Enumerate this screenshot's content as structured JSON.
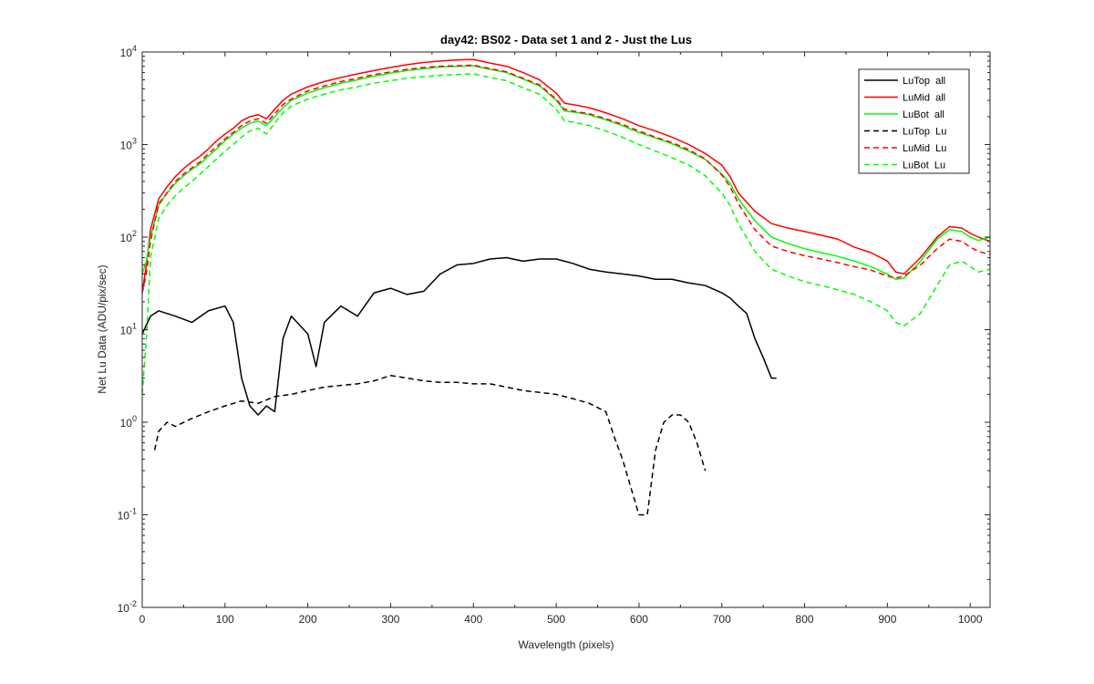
{
  "chart_data": {
    "type": "line",
    "title": "day42: BS02 - Data set 1 and 2 - Just the Lus",
    "xlabel": "Wavelength (pixels)",
    "ylabel": "Net Lu Data (ADU/pix/sec)",
    "xlim": [
      0,
      1024
    ],
    "ylim": [
      0.01,
      10000
    ],
    "yscale": "log",
    "grid": false,
    "legend_position": "top-right",
    "x_ticks": [
      "0",
      "100",
      "200",
      "300",
      "400",
      "500",
      "600",
      "700",
      "800",
      "900",
      "1000"
    ],
    "y_ticks": [
      {
        "base": "10",
        "exp": "-2"
      },
      {
        "base": "10",
        "exp": "-1"
      },
      {
        "base": "10",
        "exp": "0"
      },
      {
        "base": "10",
        "exp": "1"
      },
      {
        "base": "10",
        "exp": "2"
      },
      {
        "base": "10",
        "exp": "3"
      },
      {
        "base": "10",
        "exp": "4"
      }
    ],
    "series": [
      {
        "name": "LuTop  all",
        "color": "#000000",
        "style": "solid",
        "x": [
          0,
          10,
          20,
          40,
          60,
          80,
          100,
          110,
          120,
          130,
          140,
          150,
          160,
          170,
          180,
          200,
          210,
          220,
          240,
          260,
          280,
          300,
          320,
          340,
          360,
          380,
          400,
          420,
          440,
          460,
          480,
          500,
          520,
          540,
          560,
          580,
          600,
          620,
          640,
          660,
          680,
          700,
          710,
          720,
          730,
          740,
          750,
          760,
          766
        ],
        "y": [
          9,
          14,
          16,
          14,
          12,
          16,
          18,
          12,
          3,
          1.5,
          1.2,
          1.5,
          1.3,
          8,
          14,
          9,
          4,
          12,
          18,
          14,
          25,
          28,
          24,
          26,
          40,
          50,
          52,
          58,
          60,
          55,
          58,
          58,
          52,
          45,
          42,
          40,
          38,
          35,
          35,
          32,
          30,
          25,
          22,
          18,
          15,
          8,
          5,
          3,
          3
        ]
      },
      {
        "name": "LuMid  all",
        "color": "#ff0000",
        "style": "solid",
        "x": [
          0,
          5,
          10,
          20,
          30,
          40,
          50,
          60,
          70,
          80,
          90,
          100,
          110,
          120,
          130,
          140,
          150,
          160,
          170,
          180,
          200,
          220,
          240,
          260,
          280,
          300,
          320,
          340,
          360,
          380,
          400,
          420,
          440,
          460,
          480,
          500,
          510,
          520,
          540,
          560,
          580,
          600,
          620,
          640,
          660,
          680,
          700,
          710,
          720,
          740,
          760,
          780,
          800,
          820,
          840,
          860,
          880,
          900,
          910,
          920,
          940,
          960,
          975,
          990,
          1000,
          1010,
          1024
        ],
        "y": [
          25,
          50,
          120,
          260,
          350,
          450,
          550,
          650,
          750,
          900,
          1100,
          1300,
          1500,
          1800,
          2000,
          2100,
          1900,
          2400,
          3000,
          3500,
          4200,
          4800,
          5300,
          5800,
          6300,
          6800,
          7300,
          7700,
          8000,
          8200,
          8300,
          7600,
          7000,
          6000,
          5000,
          3600,
          2800,
          2700,
          2500,
          2200,
          1900,
          1600,
          1400,
          1200,
          1000,
          800,
          600,
          450,
          300,
          190,
          140,
          125,
          115,
          105,
          95,
          78,
          68,
          55,
          42,
          40,
          60,
          100,
          130,
          125,
          110,
          100,
          90
        ]
      },
      {
        "name": "LuBot  all",
        "color": "#00ff00",
        "style": "solid",
        "x": [
          0,
          5,
          10,
          20,
          30,
          40,
          50,
          60,
          70,
          80,
          90,
          100,
          110,
          120,
          130,
          140,
          150,
          160,
          170,
          180,
          200,
          220,
          240,
          260,
          280,
          300,
          320,
          340,
          360,
          380,
          400,
          420,
          440,
          460,
          480,
          500,
          510,
          520,
          540,
          560,
          580,
          600,
          620,
          640,
          660,
          680,
          700,
          710,
          720,
          740,
          760,
          780,
          800,
          820,
          840,
          860,
          880,
          900,
          910,
          920,
          940,
          960,
          975,
          990,
          1000,
          1010,
          1024
        ],
        "y": [
          40,
          55,
          100,
          220,
          300,
          380,
          460,
          540,
          620,
          750,
          900,
          1100,
          1300,
          1500,
          1700,
          1800,
          1600,
          2000,
          2500,
          3000,
          3600,
          4100,
          4600,
          5000,
          5500,
          5900,
          6300,
          6600,
          6900,
          7000,
          7100,
          6500,
          6000,
          5100,
          4300,
          3000,
          2300,
          2250,
          2100,
          1850,
          1600,
          1350,
          1180,
          1020,
          850,
          690,
          480,
          380,
          260,
          150,
          100,
          85,
          75,
          68,
          62,
          55,
          48,
          40,
          35,
          36,
          55,
          95,
          120,
          115,
          100,
          92,
          100
        ]
      },
      {
        "name": "LuTop  Lu",
        "color": "#000000",
        "style": "dashed",
        "x": [
          15,
          20,
          30,
          40,
          60,
          80,
          100,
          120,
          140,
          160,
          180,
          200,
          220,
          240,
          260,
          280,
          300,
          320,
          340,
          360,
          380,
          400,
          420,
          440,
          460,
          480,
          500,
          520,
          540,
          560,
          570,
          580,
          590,
          600,
          610,
          620,
          630,
          640,
          650,
          660,
          670,
          680
        ],
        "y": [
          0.5,
          0.8,
          1.0,
          0.9,
          1.1,
          1.3,
          1.5,
          1.7,
          1.6,
          1.9,
          2.0,
          2.2,
          2.4,
          2.5,
          2.6,
          2.8,
          3.2,
          3.0,
          2.8,
          2.7,
          2.7,
          2.6,
          2.6,
          2.4,
          2.2,
          2.1,
          2.0,
          1.8,
          1.6,
          1.3,
          0.7,
          0.4,
          0.2,
          0.1,
          0.1,
          0.5,
          1.0,
          1.2,
          1.2,
          1.0,
          0.6,
          0.3
        ]
      },
      {
        "name": "LuMid  Lu",
        "color": "#ff0000",
        "style": "dashed",
        "x": [
          0,
          5,
          10,
          20,
          30,
          40,
          50,
          60,
          70,
          80,
          90,
          100,
          110,
          120,
          130,
          140,
          150,
          160,
          170,
          180,
          200,
          220,
          240,
          260,
          280,
          300,
          320,
          340,
          360,
          380,
          400,
          420,
          440,
          460,
          480,
          500,
          510,
          520,
          540,
          560,
          580,
          600,
          620,
          640,
          660,
          680,
          700,
          710,
          720,
          740,
          760,
          780,
          800,
          820,
          840,
          860,
          880,
          900,
          910,
          920,
          940,
          960,
          975,
          990,
          1000,
          1010,
          1024
        ],
        "y": [
          25,
          40,
          90,
          230,
          300,
          400,
          480,
          560,
          650,
          800,
          950,
          1150,
          1350,
          1600,
          1800,
          1900,
          1700,
          2150,
          2700,
          3100,
          3800,
          4300,
          4800,
          5200,
          5700,
          6100,
          6500,
          6800,
          7000,
          7100,
          7200,
          6600,
          6100,
          5200,
          4400,
          3100,
          2400,
          2300,
          2150,
          1900,
          1650,
          1400,
          1200,
          1050,
          880,
          700,
          470,
          350,
          230,
          120,
          80,
          70,
          63,
          58,
          53,
          48,
          44,
          38,
          36,
          38,
          50,
          75,
          95,
          90,
          78,
          70,
          65
        ]
      },
      {
        "name": "LuBot  Lu",
        "color": "#00ff00",
        "style": "dashed",
        "x": [
          0,
          5,
          10,
          20,
          30,
          40,
          50,
          60,
          70,
          80,
          90,
          100,
          110,
          120,
          130,
          140,
          150,
          160,
          170,
          180,
          200,
          220,
          240,
          260,
          280,
          300,
          320,
          340,
          360,
          380,
          400,
          420,
          440,
          460,
          480,
          500,
          510,
          520,
          540,
          560,
          580,
          600,
          620,
          640,
          660,
          680,
          700,
          710,
          720,
          740,
          760,
          780,
          800,
          820,
          840,
          860,
          880,
          900,
          910,
          920,
          940,
          960,
          975,
          990,
          1000,
          1010,
          1024
        ],
        "y": [
          2,
          8,
          60,
          160,
          220,
          280,
          340,
          400,
          480,
          580,
          700,
          850,
          1000,
          1200,
          1400,
          1500,
          1300,
          1700,
          2200,
          2600,
          3100,
          3500,
          3900,
          4200,
          4600,
          4900,
          5200,
          5400,
          5600,
          5700,
          5800,
          5300,
          4900,
          4100,
          3500,
          2400,
          1800,
          1750,
          1600,
          1400,
          1200,
          1000,
          850,
          720,
          600,
          460,
          300,
          220,
          140,
          70,
          45,
          38,
          33,
          30,
          27,
          24,
          20,
          16,
          12,
          11,
          15,
          30,
          50,
          55,
          48,
          42,
          45
        ]
      }
    ]
  }
}
